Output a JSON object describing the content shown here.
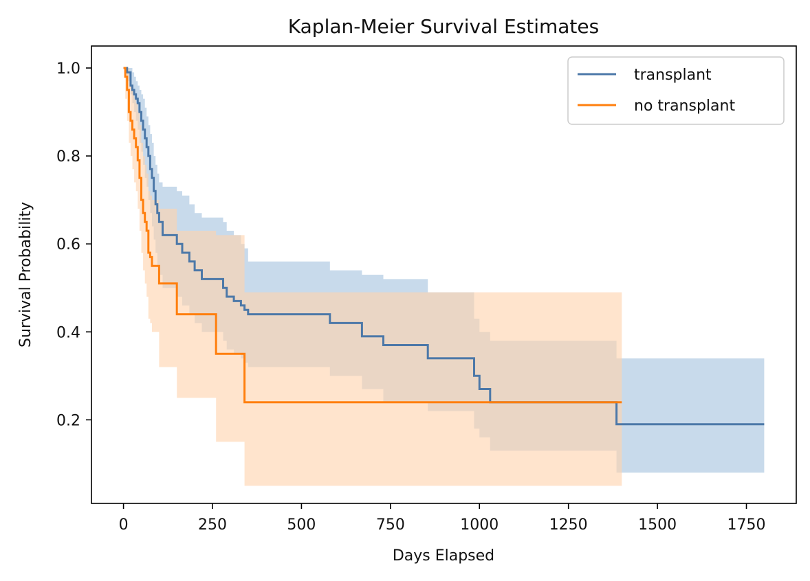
{
  "chart_data": {
    "type": "line",
    "title": "Kaplan-Meier Survival Estimates",
    "xlabel": "Days Elapsed",
    "ylabel": "Survival Probability",
    "xlim": [
      -90,
      1890
    ],
    "ylim": [
      0.01,
      1.05
    ],
    "xticks": [
      0,
      250,
      500,
      750,
      1000,
      1250,
      1500,
      1750
    ],
    "xtick_labels": [
      "0",
      "250",
      "500",
      "750",
      "1000",
      "1250",
      "1500",
      "1750"
    ],
    "yticks": [
      0.2,
      0.4,
      0.6,
      0.8,
      1.0
    ],
    "ytick_labels": [
      "0.2",
      "0.4",
      "0.6",
      "0.8",
      "1.0"
    ],
    "grid": false,
    "legend_position": "top-right",
    "series": [
      {
        "name": "transplant",
        "color": "#4c78a8",
        "band_color": "#a6c4de",
        "x": [
          0,
          10,
          20,
          25,
          30,
          35,
          40,
          45,
          50,
          55,
          60,
          65,
          70,
          75,
          80,
          85,
          90,
          95,
          100,
          110,
          150,
          165,
          185,
          200,
          220,
          280,
          290,
          310,
          330,
          340,
          350,
          580,
          670,
          730,
          855,
          985,
          1000,
          1030,
          1385,
          1400,
          1800
        ],
        "y": [
          1.0,
          0.99,
          0.96,
          0.95,
          0.94,
          0.93,
          0.92,
          0.9,
          0.88,
          0.86,
          0.84,
          0.82,
          0.8,
          0.77,
          0.75,
          0.72,
          0.69,
          0.67,
          0.65,
          0.62,
          0.6,
          0.58,
          0.56,
          0.54,
          0.52,
          0.5,
          0.48,
          0.47,
          0.46,
          0.45,
          0.44,
          0.42,
          0.39,
          0.37,
          0.34,
          0.3,
          0.27,
          0.24,
          0.19,
          0.19,
          0.19
        ],
        "ci_lower": [
          1.0,
          0.97,
          0.94,
          0.92,
          0.9,
          0.88,
          0.86,
          0.83,
          0.81,
          0.78,
          0.75,
          0.73,
          0.7,
          0.67,
          0.64,
          0.61,
          0.58,
          0.55,
          0.53,
          0.5,
          0.48,
          0.46,
          0.44,
          0.42,
          0.4,
          0.38,
          0.36,
          0.35,
          0.34,
          0.33,
          0.32,
          0.3,
          0.27,
          0.24,
          0.22,
          0.18,
          0.16,
          0.13,
          0.08,
          0.08,
          0.08
        ],
        "ci_upper": [
          1.0,
          1.0,
          1.0,
          0.99,
          0.98,
          0.97,
          0.96,
          0.95,
          0.94,
          0.93,
          0.91,
          0.89,
          0.87,
          0.85,
          0.83,
          0.8,
          0.78,
          0.76,
          0.74,
          0.73,
          0.72,
          0.71,
          0.69,
          0.67,
          0.66,
          0.65,
          0.63,
          0.62,
          0.6,
          0.59,
          0.56,
          0.54,
          0.53,
          0.52,
          0.49,
          0.43,
          0.4,
          0.38,
          0.34,
          0.34,
          0.34
        ]
      },
      {
        "name": "no transplant",
        "color": "#ff7f0e",
        "band_color": "#ffd4ae",
        "x": [
          0,
          5,
          10,
          15,
          20,
          25,
          30,
          35,
          40,
          45,
          50,
          55,
          60,
          65,
          70,
          75,
          80,
          100,
          150,
          260,
          340,
          1400
        ],
        "y": [
          1.0,
          0.98,
          0.95,
          0.9,
          0.88,
          0.86,
          0.84,
          0.82,
          0.79,
          0.75,
          0.7,
          0.67,
          0.65,
          0.63,
          0.58,
          0.57,
          0.55,
          0.51,
          0.44,
          0.35,
          0.24,
          0.24
        ],
        "ci_lower": [
          1.0,
          0.93,
          0.88,
          0.83,
          0.8,
          0.77,
          0.74,
          0.72,
          0.68,
          0.63,
          0.58,
          0.54,
          0.51,
          0.48,
          0.43,
          0.42,
          0.4,
          0.32,
          0.25,
          0.15,
          0.05,
          0.05
        ],
        "ci_upper": [
          1.0,
          1.0,
          1.0,
          0.98,
          0.96,
          0.95,
          0.93,
          0.92,
          0.9,
          0.87,
          0.83,
          0.8,
          0.78,
          0.76,
          0.72,
          0.71,
          0.7,
          0.68,
          0.63,
          0.62,
          0.49,
          0.49
        ]
      }
    ]
  }
}
